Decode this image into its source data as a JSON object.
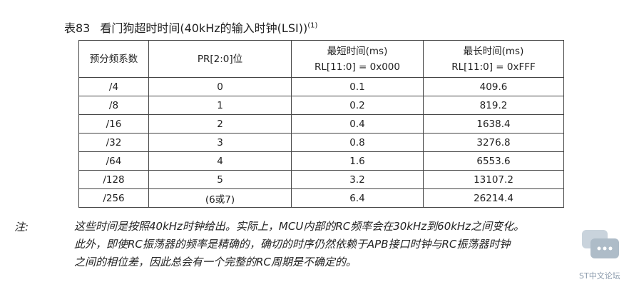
{
  "caption": {
    "number": "表83",
    "title": "看门狗超时时间(40kHz的输入时钟(LSI))",
    "superscript": "(1)"
  },
  "table": {
    "header": [
      [
        "预分频系数"
      ],
      [
        "PR[2:0]位"
      ],
      [
        "最短时间(ms)",
        "RL[11:0] = 0x000"
      ],
      [
        "最长时间(ms)",
        "RL[11:0] = 0xFFF"
      ]
    ],
    "rows": [
      [
        "/4",
        "0",
        "0.1",
        "409.6"
      ],
      [
        "/8",
        "1",
        "0.2",
        "819.2"
      ],
      [
        "/16",
        "2",
        "0.4",
        "1638.4"
      ],
      [
        "/32",
        "3",
        "0.8",
        "3276.8"
      ],
      [
        "/64",
        "4",
        "1.6",
        "6553.6"
      ],
      [
        "/128",
        "5",
        "3.2",
        "13107.2"
      ],
      [
        "/256",
        "(6或7)",
        "6.4",
        "26214.4"
      ]
    ]
  },
  "note": {
    "label": "注:",
    "lines": [
      "这些时间是按照40kHz时钟给出。实际上，MCU内部的RC频率会在30kHz到60kHz之间变化。",
      "此外，即使RC振荡器的频率是精确的，确切的时序仍然依赖于APB接口时钟与RC振荡器时钟",
      "之间的相位差，因此总会有一个完整的RC周期是不确定的。"
    ]
  },
  "watermark": "ST中文论坛"
}
